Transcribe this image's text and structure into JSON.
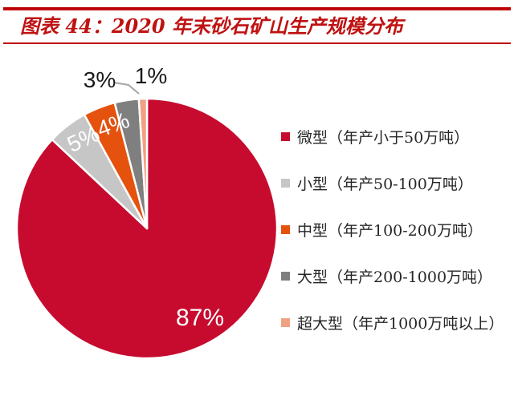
{
  "header": {
    "title": "图表 44：2020 年末砂石矿山生产规模分布"
  },
  "chart_data": {
    "type": "pie",
    "title": "2020 年末砂石矿山生产规模分布",
    "categories": [
      "微型（年产小于50万吨）",
      "小型（年产50-100万吨）",
      "中型（年产100-200万吨）",
      "大型（年产200-1000万吨）",
      "超大型（年产1000万吨以上）"
    ],
    "values": [
      87,
      5,
      4,
      3,
      1
    ],
    "unit": "percent",
    "slice_labels": [
      "87%",
      "5%",
      "4%",
      "3%",
      "1%"
    ],
    "label_placement": [
      "inside",
      "inside",
      "inside",
      "outside",
      "outside"
    ],
    "colors": [
      "#c60b2f",
      "#c6c6c6",
      "#e5520e",
      "#7f7f7f",
      "#f0a183"
    ],
    "start_angle_deg": -90,
    "direction": "clockwise",
    "legend_position": "right"
  },
  "styles": {
    "accent_red": "#c00000",
    "title_red": "#bf1212",
    "label_dark": "#1a1a1a",
    "leader_gray": "#a6a6a6",
    "background": "#ffffff"
  }
}
